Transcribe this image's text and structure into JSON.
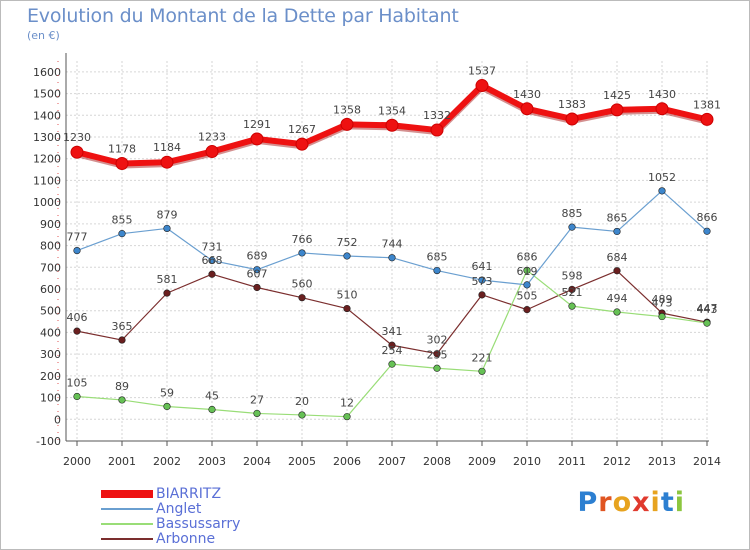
{
  "title": "Evolution du Montant de la Dette par Habitant",
  "unit": "(en €)",
  "brand": {
    "text": "Proxiti",
    "letter_colors": [
      "#2c7fd1",
      "#e05522",
      "#e7a31f",
      "#e03a2e",
      "#e7a31f",
      "#2c7fd1",
      "#8cc63f"
    ]
  },
  "chart_data": {
    "type": "line",
    "x": [
      "2000",
      "2001",
      "2002",
      "2003",
      "2004",
      "2005",
      "2006",
      "2007",
      "2008",
      "2009",
      "2010",
      "2011",
      "2012",
      "2013",
      "2014"
    ],
    "ylim": [
      -100,
      1650
    ],
    "yticks": [
      -100,
      0,
      100,
      200,
      300,
      400,
      500,
      600,
      700,
      800,
      900,
      1000,
      1100,
      1200,
      1300,
      1400,
      1500,
      1600
    ],
    "grid": true,
    "legend_position": "bottom-left",
    "series": [
      {
        "name": "BIARRITZ",
        "color": "#ee1111",
        "values": [
          1230,
          1178,
          1184,
          1233,
          1291,
          1267,
          1358,
          1354,
          1332,
          1537,
          1430,
          1383,
          1425,
          1430,
          1381
        ]
      },
      {
        "name": "Anglet",
        "color": "#6a9fd0",
        "values": [
          777,
          855,
          879,
          731,
          689,
          766,
          752,
          744,
          685,
          641,
          619,
          885,
          865,
          1052,
          866
        ]
      },
      {
        "name": "Bassussarry",
        "color": "#99dd77",
        "values": [
          105,
          89,
          59,
          45,
          27,
          20,
          12,
          254,
          235,
          221,
          686,
          521,
          494,
          473,
          443
        ]
      },
      {
        "name": "Arbonne",
        "color": "#7b2e2e",
        "values": [
          406,
          365,
          581,
          668,
          607,
          560,
          510,
          341,
          302,
          573,
          505,
          598,
          684,
          489,
          447
        ]
      }
    ]
  }
}
